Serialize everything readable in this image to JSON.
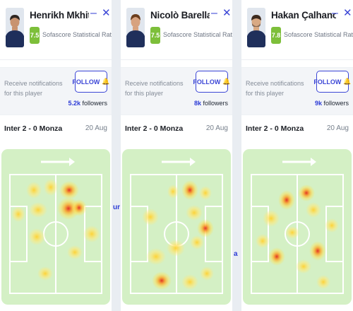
{
  "colors": {
    "accent": "#3b46d6",
    "rating": "#7dbf3a",
    "pitch": "#d7f2c7"
  },
  "cards": [
    {
      "name": "Henrikh Mkhitary…",
      "rating": "7.5",
      "rating_caption": "Sofascore Statistical Rating",
      "notify_text": "Receive notifications for this player",
      "follow_label": "FOLLOW",
      "followers_count": "5.2k",
      "followers_label": "followers",
      "match": "Inter 2 - 0 Monza",
      "date": "20 Aug"
    },
    {
      "name": "Nicolò Barella",
      "rating": "7.5",
      "rating_caption": "Sofascore Statistical Rating",
      "notify_text": "Receive notifications for this player",
      "follow_label": "FOLLOW",
      "followers_count": "8k",
      "followers_label": "followers",
      "match": "Inter 2 - 0 Monza",
      "date": "20 Aug"
    },
    {
      "name": "Hakan Çalhanoğlu",
      "rating": "7.8",
      "rating_caption": "Sofascore Statistical Rating",
      "notify_text": "Receive notifications for this player",
      "follow_label": "FOLLOW",
      "followers_count": "9k",
      "followers_label": "followers",
      "match": "Inter 2 - 0 Monza",
      "date": "20 Aug"
    }
  ],
  "peek_texts": {
    "left": "ur",
    "right": "a"
  },
  "icons": {
    "minimize": "minimize-icon",
    "close": "close-icon",
    "bell": "bell-icon",
    "direction_arrow": "arrow-right-icon"
  }
}
